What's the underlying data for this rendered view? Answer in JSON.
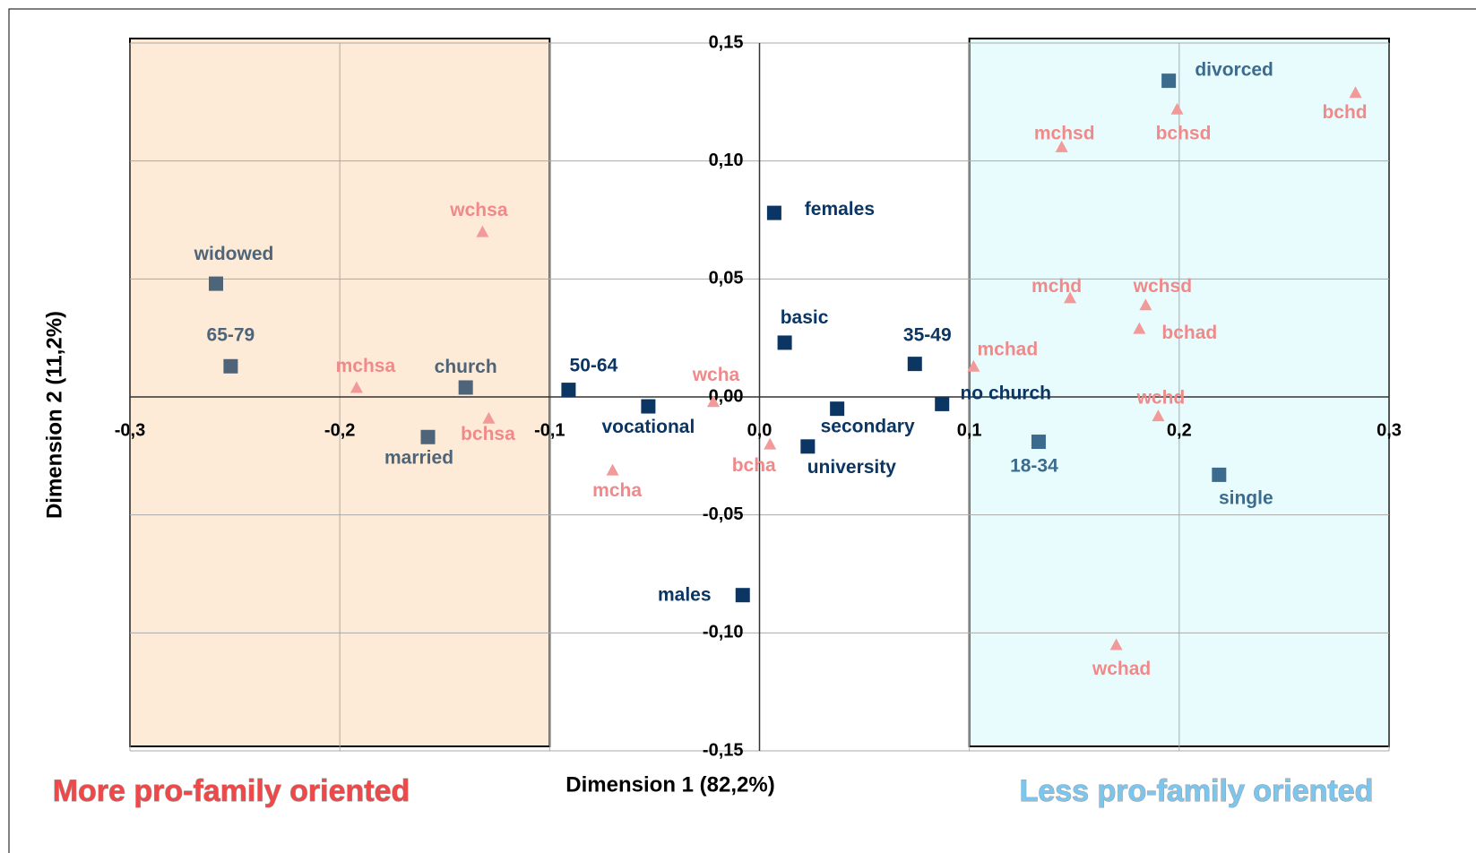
{
  "chart_data": {
    "type": "scatter",
    "xlabel": "Dimension 1 (82,2%)",
    "ylabel": "Dimension 2 (11,2%)",
    "xlim": [
      -0.3,
      0.3
    ],
    "ylim": [
      -0.15,
      0.15
    ],
    "xticks": [
      {
        "value": -0.3,
        "label": "-0,3"
      },
      {
        "value": -0.2,
        "label": "-0,2"
      },
      {
        "value": -0.1,
        "label": "-0,1"
      },
      {
        "value": 0,
        "label": "0,0"
      },
      {
        "value": 0.1,
        "label": "0,1"
      },
      {
        "value": 0.2,
        "label": "0,2"
      },
      {
        "value": 0.3,
        "label": "0,3"
      }
    ],
    "yticks": [
      {
        "value": 0.15,
        "label": "0,15"
      },
      {
        "value": 0.1,
        "label": "0,10"
      },
      {
        "value": 0.05,
        "label": "0,05"
      },
      {
        "value": 0,
        "label": "0,00"
      },
      {
        "value": -0.05,
        "label": "-0,05"
      },
      {
        "value": -0.1,
        "label": "-0,10"
      },
      {
        "value": -0.15,
        "label": "-0,15"
      }
    ],
    "grid": true,
    "regions": [
      {
        "xlim": [
          -0.3,
          -0.1
        ],
        "color": "#fdebd8",
        "label": "More pro-family oriented",
        "label_color": "#f04848"
      },
      {
        "xlim": [
          0.1,
          0.3
        ],
        "color": "#e9fcfd",
        "label": "Less pro-family oriented",
        "label_color": "#7cc6ee"
      }
    ],
    "series": [
      {
        "marker": "square",
        "color": "#4d6479",
        "labels": [
          "widowed",
          "65-79",
          "church",
          "married"
        ],
        "x": [
          -0.259,
          -0.252,
          -0.14,
          -0.158
        ],
        "values": [
          0.048,
          0.013,
          0.004,
          -0.017
        ]
      },
      {
        "marker": "square",
        "color": "#0b3563",
        "labels": [
          "50-64",
          "vocational",
          "females",
          "basic",
          "secondary",
          "university",
          "35-49",
          "no church",
          "males"
        ],
        "x": [
          -0.091,
          -0.053,
          0.007,
          0.012,
          0.037,
          0.023,
          0.074,
          0.087,
          -0.008
        ],
        "values": [
          0.003,
          -0.004,
          0.078,
          0.023,
          -0.005,
          -0.021,
          0.014,
          -0.003,
          -0.084
        ]
      },
      {
        "marker": "square",
        "color": "#3b6c8e",
        "labels": [
          "divorced",
          "18-34",
          "single"
        ],
        "x": [
          0.195,
          0.133,
          0.219
        ],
        "values": [
          0.134,
          -0.019,
          -0.033
        ]
      },
      {
        "marker": "triangle",
        "color": "#f29a9a",
        "labels": [
          "wchsa",
          "mchsa",
          "bchsa",
          "wcha",
          "mcha",
          "bcha",
          "mchsd",
          "bchsd",
          "bchd",
          "mchd",
          "wchsd",
          "bchad",
          "mchad",
          "wchd",
          "wchad"
        ],
        "x": [
          -0.132,
          -0.192,
          -0.129,
          -0.022,
          -0.07,
          0.005,
          0.144,
          0.199,
          0.284,
          0.148,
          0.184,
          0.181,
          0.102,
          0.19,
          0.17
        ],
        "values": [
          0.07,
          0.004,
          -0.009,
          -0.002,
          -0.031,
          -0.02,
          0.106,
          0.122,
          0.129,
          0.042,
          0.039,
          0.029,
          0.013,
          -0.008,
          -0.105
        ]
      }
    ]
  }
}
